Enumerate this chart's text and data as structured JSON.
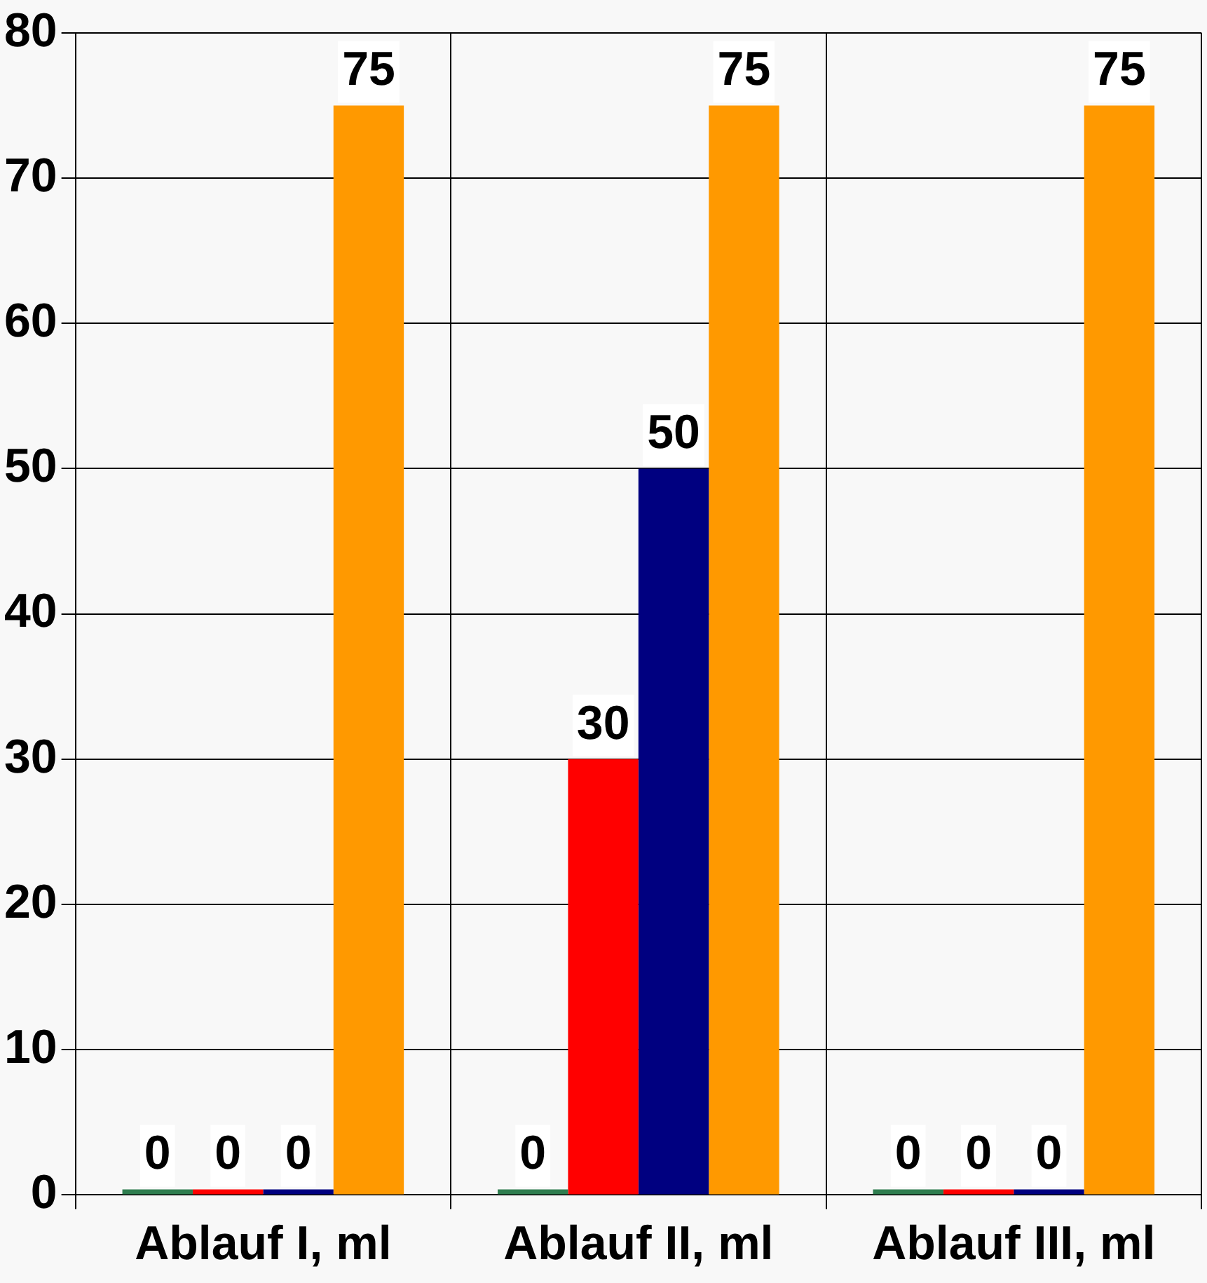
{
  "chart_data": {
    "type": "bar",
    "categories": [
      "Ablauf I, ml",
      "Ablauf II, ml",
      "Ablauf III, ml"
    ],
    "series": [
      {
        "color": "#2e7d4f",
        "values": [
          0,
          0,
          0
        ]
      },
      {
        "color": "#ff0000",
        "values": [
          0,
          30,
          0
        ]
      },
      {
        "color": "#000080",
        "values": [
          0,
          50,
          0
        ]
      },
      {
        "color": "#ff9900",
        "values": [
          75,
          75,
          75
        ]
      }
    ],
    "ylim": [
      0,
      80
    ],
    "yticks": [
      0,
      10,
      20,
      30,
      40,
      50,
      60,
      70,
      80
    ],
    "grid": true,
    "legend": false,
    "data_labels": true
  }
}
